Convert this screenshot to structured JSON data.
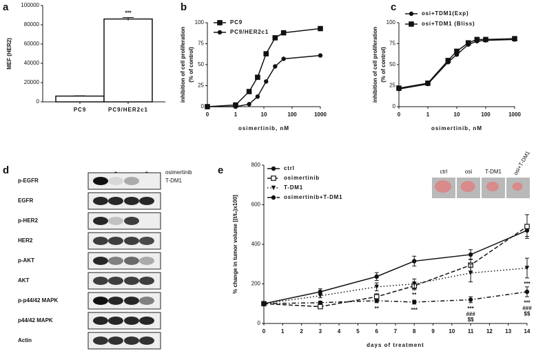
{
  "panels": [
    "a",
    "b",
    "c",
    "d",
    "e"
  ],
  "chart_data": [
    {
      "type": "bar",
      "ylabel": "MEF (HER2)",
      "categories": [
        "PC9",
        "PC9/HER2c1"
      ],
      "values": [
        6000,
        86000
      ],
      "errors": [
        300,
        1500
      ],
      "marks": [
        null,
        "***"
      ],
      "color": "#ffffff",
      "ylim": [
        0,
        100000
      ],
      "yticks": [
        0,
        20000,
        40000,
        60000,
        80000,
        100000
      ]
    },
    {
      "type": "line",
      "xscale": "log",
      "xlabel": "osimertinib, nM",
      "ylabel": [
        "inhibition of cell proliferation",
        "(% of control)"
      ],
      "x": [
        0,
        1,
        3,
        6,
        12,
        25,
        50,
        1000
      ],
      "series": [
        {
          "name": "PC9",
          "color": "#111111",
          "marker": "square",
          "dash": "solid",
          "values": [
            0,
            2,
            18,
            35,
            63,
            82,
            88,
            93
          ]
        },
        {
          "name": "PC9/HER2c1",
          "color": "#111111",
          "marker": "circle",
          "dash": "solid",
          "values": [
            0,
            0,
            3,
            12,
            30,
            48,
            57,
            61
          ]
        }
      ],
      "xlim": [
        0,
        1000
      ],
      "xticks": [
        0,
        1,
        10,
        100,
        1000
      ],
      "ylim": [
        0,
        100
      ],
      "yticks": [
        0,
        25,
        50,
        75,
        100
      ],
      "legend": "upper left"
    },
    {
      "type": "line",
      "xscale": "log",
      "xlabel": "osimertinib, nM",
      "ylabel": [
        "inhibition of cell proliferation",
        "(% of control)"
      ],
      "x": [
        0,
        1,
        5,
        10,
        25,
        50,
        100,
        1000
      ],
      "series": [
        {
          "name": "osi+TDM1(Exp)",
          "color": "#111111",
          "marker": "circle",
          "dash": "solid",
          "values": [
            21,
            27,
            53,
            62,
            74,
            78,
            79,
            80
          ]
        },
        {
          "name": "osi+TDM1 (Bliss)",
          "color": "#111111",
          "marker": "square",
          "dash": "solid",
          "values": [
            22,
            28,
            55,
            66,
            76,
            80,
            80,
            81
          ]
        }
      ],
      "xlim": [
        0,
        1000
      ],
      "xticks": [
        0,
        1,
        10,
        100,
        1000
      ],
      "ylim": [
        0,
        100
      ],
      "yticks": [
        0,
        25,
        50,
        75,
        100
      ],
      "legend": "upper left"
    },
    {
      "type": "line",
      "xlabel": "days of treatment",
      "ylabel": "% change in tumor volume [(t/t₀)x100]",
      "x": [
        0,
        3,
        6,
        8,
        11,
        14
      ],
      "series": [
        {
          "name": "ctrl",
          "color": "#111111",
          "marker": "circle",
          "dash": "solid",
          "values": [
            100,
            160,
            237,
            315,
            348,
            470
          ],
          "errors": [
            8,
            15,
            20,
            25,
            25,
            30
          ],
          "marks": [
            null,
            null,
            null,
            null,
            null,
            null
          ]
        },
        {
          "name": "osimertinib",
          "color": "#111111",
          "marker": "open-square",
          "dash": "dashed",
          "values": [
            100,
            85,
            135,
            190,
            295,
            490
          ],
          "errors": [
            5,
            10,
            15,
            20,
            30,
            60
          ],
          "marks": [
            null,
            null,
            null,
            null,
            null,
            null
          ]
        },
        {
          "name": "T-DM1",
          "color": "#111111",
          "marker": "triangle-down",
          "dash": "dotted",
          "values": [
            100,
            140,
            185,
            200,
            255,
            280
          ],
          "errors": [
            5,
            10,
            20,
            25,
            45,
            50
          ],
          "marks": [
            null,
            null,
            null,
            [
              "**"
            ],
            null,
            [
              "***"
            ]
          ]
        },
        {
          "name": "osimertinib+T-DM1",
          "color": "#111111",
          "marker": "circle",
          "dash": "dashdot",
          "values": [
            100,
            105,
            115,
            108,
            120,
            160
          ],
          "errors": [
            5,
            8,
            10,
            10,
            15,
            25
          ],
          "marks": [
            null,
            null,
            [
              "**"
            ],
            [
              "***"
            ],
            [
              "***",
              "###",
              "$$"
            ],
            [
              "***",
              "###",
              "$$"
            ]
          ]
        }
      ],
      "inset_labels": [
        "ctrl",
        "osi",
        "T-DM1",
        "osi+T-DM1"
      ],
      "xlim": [
        0,
        14
      ],
      "xticks": [
        0,
        1,
        2,
        3,
        4,
        5,
        6,
        7,
        8,
        9,
        10,
        11,
        12,
        13,
        14
      ],
      "ylim": [
        0,
        800
      ],
      "yticks": [
        0,
        200,
        400,
        600,
        800
      ],
      "legend": "upper left"
    }
  ],
  "blot": {
    "treatments": [
      {
        "name": "osimertinib",
        "signs": [
          "-",
          "+",
          "-",
          "+"
        ]
      },
      {
        "name": "T-DM1",
        "signs": [
          "-",
          "-",
          "+",
          "+"
        ]
      }
    ],
    "rows": [
      "p-EGFR",
      "EGFR",
      "p-HER2",
      "HER2",
      "p-AKT",
      "AKT",
      "p-p44/42 MAPK",
      "p44/42 MAPK",
      "Actin"
    ]
  }
}
